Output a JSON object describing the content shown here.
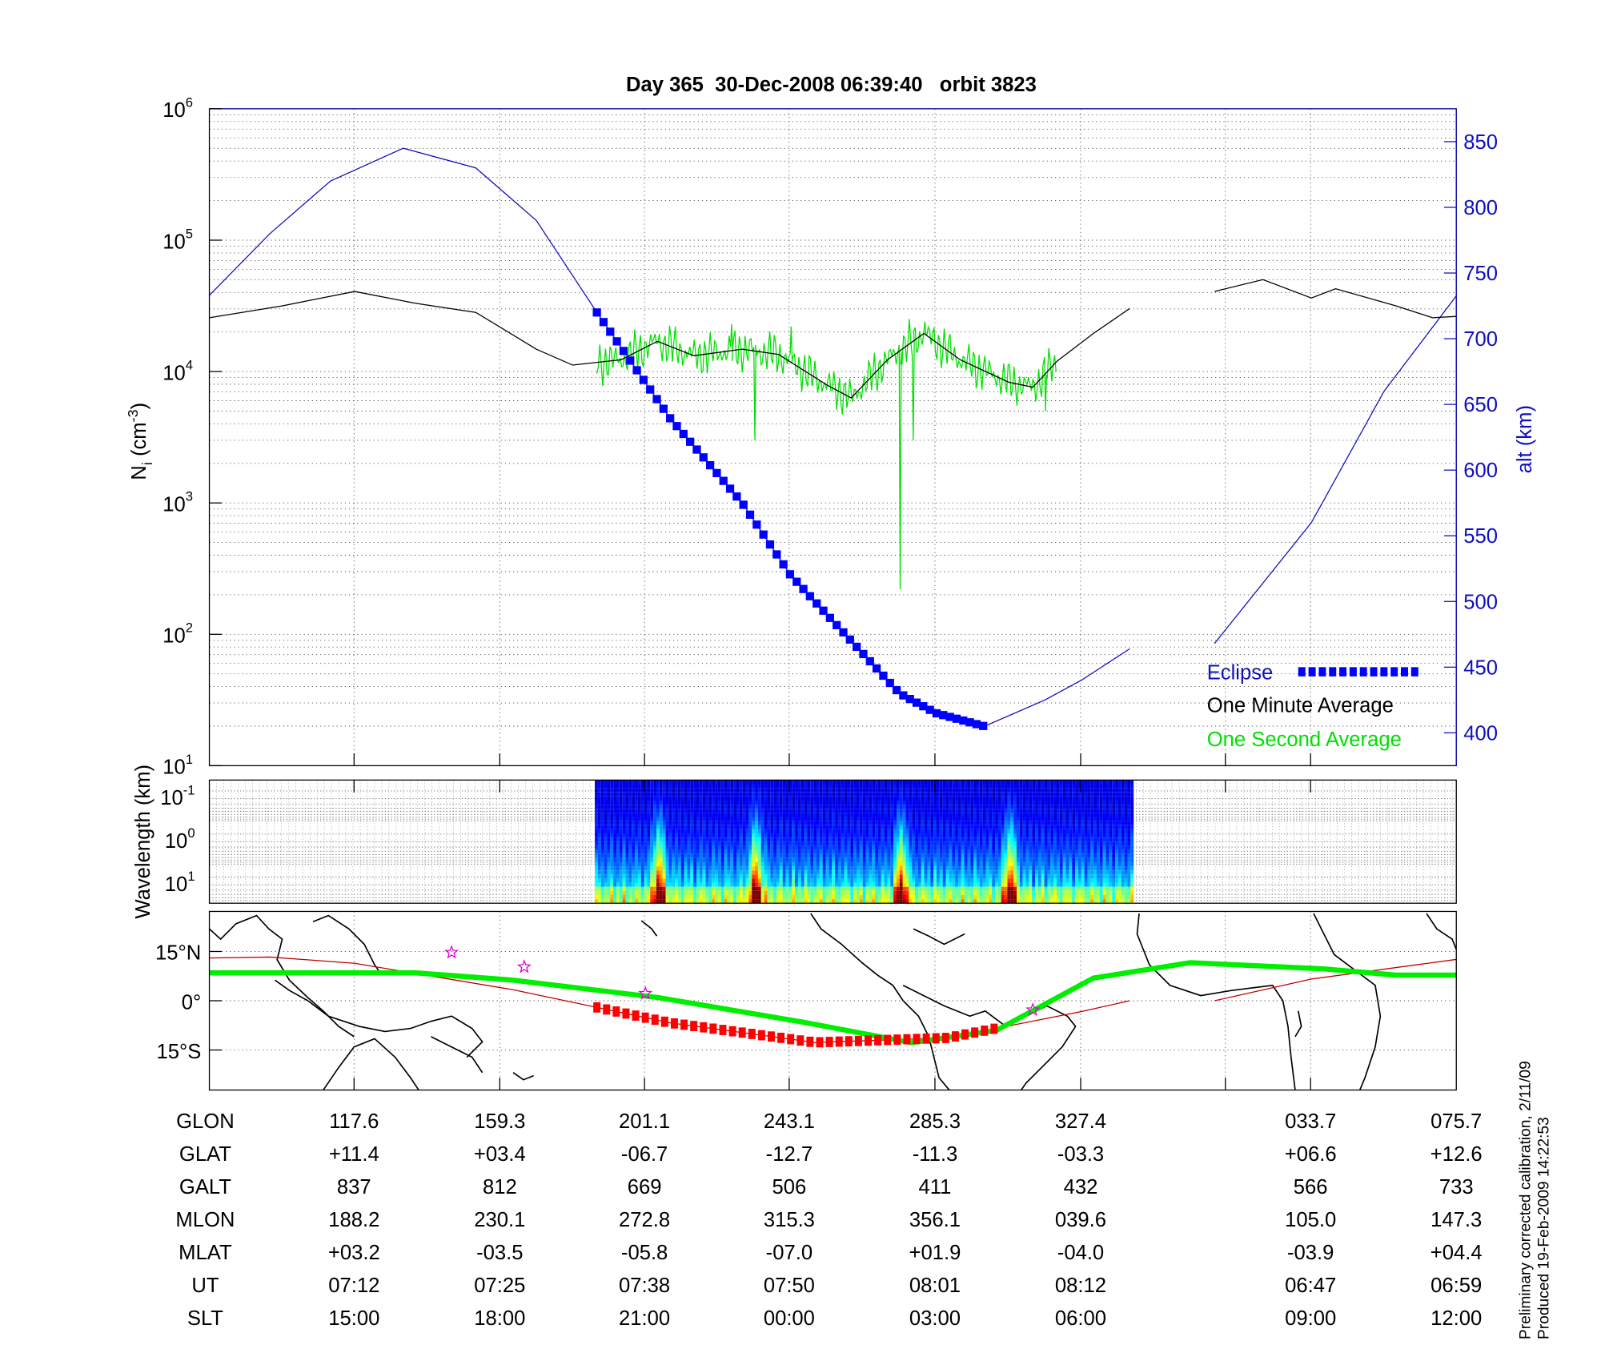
{
  "title": "Day 365  30-Dec-2008 06:39:40   orbit 3823",
  "footer": [
    "Preliminary corrected calibration, 2/11/09",
    "Produced 19-Feb-2009 14:22:53"
  ],
  "colors": {
    "altitude": "#1010c0",
    "eclipse": "#0000ff",
    "minute_avg": "#000000",
    "second_avg": "#00e000",
    "map_track": "#c00000",
    "map_eclipse": "#ff0000",
    "map_equator": "#00ee00",
    "stars": "#dd00dd"
  },
  "chart_data": [
    {
      "type": "line",
      "panel": "density",
      "ylabel": "N_i (cm^-3)",
      "y2label": "alt (km)",
      "yscale": "log",
      "ylim": [
        10,
        1000000
      ],
      "y2lim": [
        375,
        875
      ],
      "yticks": [
        {
          "base": "10",
          "exp": "1"
        },
        {
          "base": "10",
          "exp": "2"
        },
        {
          "base": "10",
          "exp": "3"
        },
        {
          "base": "10",
          "exp": "4"
        },
        {
          "base": "10",
          "exp": "5"
        },
        {
          "base": "10",
          "exp": "6"
        }
      ],
      "y2ticks": [
        "400",
        "450",
        "500",
        "550",
        "600",
        "650",
        "700",
        "750",
        "800",
        "850"
      ],
      "grid": true,
      "legend_placement": "bottom-right",
      "legend": [
        {
          "label": "Eclipse",
          "color": "#0000ff"
        },
        {
          "label": "One Minute Average",
          "color": "#000000"
        },
        {
          "label": "One Second Average",
          "color": "#00e000"
        }
      ],
      "altitude": {
        "x_ut": [
          "07:00",
          "07:05",
          "07:10",
          "07:16",
          "07:22",
          "07:27",
          "07:32",
          "07:38",
          "07:44",
          "07:48",
          "07:53",
          "07:57",
          "08:00",
          "08:04",
          "08:09",
          "08:12",
          "08:16",
          null,
          "08:23",
          "08:31",
          "08:37",
          "08:43"
        ],
        "alt_km": [
          733,
          780,
          820,
          845,
          830,
          790,
          720,
          640,
          575,
          520,
          470,
          430,
          415,
          405,
          425,
          440,
          464,
          null,
          468,
          560,
          660,
          733
        ]
      },
      "eclipse_ut_range": [
        "07:32",
        "08:04"
      ],
      "one_minute_average": {
        "x_ut": [
          "07:00",
          "07:06",
          "07:12",
          "07:17",
          "07:22",
          "07:27",
          "07:30",
          "07:34",
          "07:37",
          "07:40",
          "07:44",
          "07:47",
          "07:51",
          "07:53",
          "07:56",
          "07:59",
          "08:02",
          "08:06",
          "08:08",
          "08:10",
          "08:13",
          "08:16",
          null,
          "08:23",
          "08:27",
          "08:31",
          "08:33",
          "08:38",
          "08:41",
          "08:43"
        ],
        "ni": [
          25700,
          31600,
          40700,
          33100,
          28200,
          14800,
          11200,
          12300,
          17000,
          13200,
          14800,
          13500,
          7900,
          6300,
          12300,
          19500,
          12300,
          8300,
          7600,
          12000,
          19500,
          30200,
          null,
          40700,
          50100,
          36300,
          42700,
          31600,
          25700,
          26300
        ]
      },
      "one_second_average": {
        "ut_range": [
          "07:32",
          "08:10"
        ],
        "spikes": [
          {
            "ut": "07:43",
            "ni": 23000
          },
          {
            "ut": "07:45",
            "ni": 3000
          },
          {
            "ut": "07:48",
            "ni": 22000
          },
          {
            "ut": "07:57",
            "ni": 220
          },
          {
            "ut": "07:58",
            "ni": 3000
          },
          {
            "ut": "07:59",
            "ni": 24000
          },
          {
            "ut": "08:09",
            "ni": 5000
          }
        ]
      }
    },
    {
      "type": "heatmap",
      "panel": "spectrogram",
      "ylabel": "Wavelength (km)",
      "yscale": "log",
      "yticks": [
        {
          "base": "10",
          "exp": "-1"
        },
        {
          "base": "10",
          "exp": "0"
        },
        {
          "base": "10",
          "exp": "1"
        }
      ],
      "ut_range": [
        "07:32",
        "08:16"
      ],
      "colormap": "jet",
      "intense_bursts_ut": [
        "07:37",
        "07:45",
        "07:57",
        "08:06"
      ]
    },
    {
      "type": "line",
      "panel": "map",
      "yticks": [
        "15°N",
        "0°",
        "15°S"
      ],
      "ylim": [
        -27,
        27
      ],
      "orbit_track": {
        "x_ut": [
          "07:00",
          "07:05",
          "07:12",
          "07:25",
          "07:38",
          "07:50",
          "08:01",
          "08:12",
          "08:16",
          null,
          "08:23",
          "08:31",
          "08:43"
        ],
        "glat": [
          13.0,
          13.3,
          11.4,
          3.4,
          -6.7,
          -12.7,
          -11.3,
          -3.3,
          0,
          null,
          0,
          6.6,
          12.6
        ]
      },
      "eclipse_ut_range": [
        "07:32",
        "08:05"
      ],
      "magnetic_equator": {
        "x_ut": [
          "07:00",
          "07:17",
          "07:25",
          "07:37",
          "07:49",
          "07:58",
          "08:05",
          "08:13",
          "08:21",
          "08:32",
          "08:38",
          "08:43"
        ],
        "lat": [
          8.5,
          8.5,
          6.3,
          1.0,
          -6.5,
          -12.8,
          -9.0,
          6.9,
          11.6,
          9.7,
          7.8,
          7.8
        ]
      },
      "stars": [
        {
          "ut": "07:20",
          "lat": 14.7
        },
        {
          "ut": "07:26",
          "lat": 10.3
        },
        {
          "ut": "07:36",
          "lat": 2.2
        },
        {
          "ut": "08:08",
          "lat": -2.8
        }
      ]
    }
  ],
  "table": {
    "rows": [
      {
        "label": "GLON",
        "values": [
          "117.6",
          "159.3",
          "201.1",
          "243.1",
          "285.3",
          "327.4",
          "033.7",
          "075.7"
        ]
      },
      {
        "label": "GLAT",
        "values": [
          "+11.4",
          "+03.4",
          "-06.7",
          "-12.7",
          "-11.3",
          "-03.3",
          "+06.6",
          "+12.6"
        ]
      },
      {
        "label": "GALT",
        "values": [
          "837",
          "812",
          "669",
          "506",
          "411",
          "432",
          "566",
          "733"
        ]
      },
      {
        "label": "MLON",
        "values": [
          "188.2",
          "230.1",
          "272.8",
          "315.3",
          "356.1",
          "039.6",
          "105.0",
          "147.3"
        ]
      },
      {
        "label": "MLAT",
        "values": [
          "+03.2",
          "-03.5",
          "-05.8",
          "-07.0",
          "+01.9",
          "-04.0",
          "-03.9",
          "+04.4"
        ]
      },
      {
        "label": "UT",
        "values": [
          "07:12",
          "07:25",
          "07:38",
          "07:50",
          "08:01",
          "08:12",
          "06:47",
          "06:59"
        ]
      },
      {
        "label": "SLT",
        "values": [
          "15:00",
          "18:00",
          "21:00",
          "00:00",
          "03:00",
          "06:00",
          "09:00",
          "12:00"
        ]
      }
    ]
  }
}
